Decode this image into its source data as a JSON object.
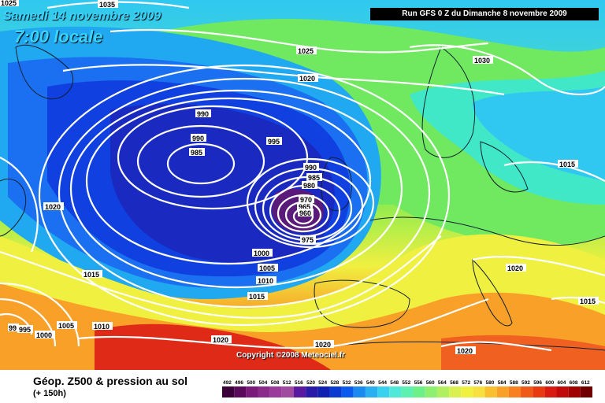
{
  "header": {
    "date": "Samedi 14 novembre 2009",
    "time": "7:00 locale",
    "run": "Run GFS 0 Z du Dimanche 8 novembre 2009"
  },
  "copyright": "Copyright ©2008 Meteociel.fr",
  "legend": {
    "title": "Géop. Z500 & pression au sol",
    "subtitle": "(+ 150h)",
    "scale_values": [
      "492",
      "496",
      "500",
      "504",
      "508",
      "512",
      "516",
      "520",
      "524",
      "528",
      "532",
      "536",
      "540",
      "544",
      "548",
      "552",
      "556",
      "560",
      "564",
      "568",
      "572",
      "576",
      "580",
      "584",
      "588",
      "592",
      "596",
      "600",
      "604",
      "608",
      "612"
    ],
    "scale_colors": [
      "#3a003a",
      "#5a0a5a",
      "#7a1a7a",
      "#8a2a8a",
      "#9a3a9a",
      "#a04aa0",
      "#5a1aa0",
      "#2a1aa8",
      "#1020b0",
      "#0a3ad0",
      "#0a5aee",
      "#1a8af0",
      "#2ab0f0",
      "#3ad0f0",
      "#50e8d8",
      "#5ef0b0",
      "#6ef088",
      "#8ef070",
      "#b0f060",
      "#d8f050",
      "#f0f040",
      "#f8e040",
      "#f8c030",
      "#f8a028",
      "#f88020",
      "#f05a18",
      "#e83a10",
      "#d81a10",
      "#c00a0a",
      "#a00000",
      "#700000"
    ]
  },
  "isobars": [
    "1035",
    "1025",
    "1020",
    "1030",
    "990",
    "990",
    "985",
    "995",
    "990",
    "985",
    "980",
    "970",
    "965",
    "960",
    "975",
    "1020",
    "1000",
    "1005",
    "1010",
    "1015",
    "1015",
    "1015",
    "1020",
    "1015",
    "1005",
    "1010",
    "995",
    "1000",
    "99",
    "1020",
    "1020",
    "1020",
    "1025"
  ],
  "map": {
    "palette": {
      "deep_purple": "#5a1a7a",
      "dark_blue": "#1a2ac0",
      "blue": "#1040e0",
      "mid_blue": "#1a70f0",
      "sky": "#20a8f0",
      "cyan": "#30d0e8",
      "teal": "#40e8c8",
      "green": "#70e860",
      "yellow_green": "#b8f040",
      "yellow": "#f0f040",
      "orange": "#f8b030",
      "red_orange": "#f06020",
      "red": "#e02a18"
    }
  }
}
